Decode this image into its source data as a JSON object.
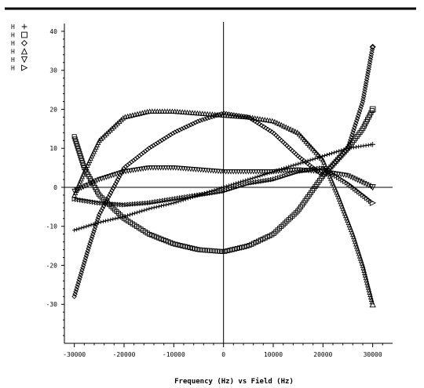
{
  "chart_data": {
    "type": "scatter",
    "xlabel": "Frequency (Hz) vs Field (Hz)",
    "ylabel": "",
    "xlim": [
      -32000,
      34000
    ],
    "ylim": [
      -40,
      42
    ],
    "x_ticks": [
      {
        "value": -30000,
        "label": "-30000"
      },
      {
        "value": -20000,
        "label": "-20000"
      },
      {
        "value": -10000,
        "label": "-10000"
      },
      {
        "value": 0,
        "label": "0"
      },
      {
        "value": 10000,
        "label": "10000"
      },
      {
        "value": 20000,
        "label": "20000"
      },
      {
        "value": 30000,
        "label": "30000"
      }
    ],
    "y_ticks": [
      {
        "value": 40,
        "label": "40"
      },
      {
        "value": 30,
        "label": "30"
      },
      {
        "value": 20,
        "label": "20"
      },
      {
        "value": 10,
        "label": "10"
      },
      {
        "value": 0,
        "label": "0"
      },
      {
        "value": -10,
        "label": "-10"
      },
      {
        "value": -20,
        "label": "-20"
      },
      {
        "value": -30,
        "label": "-30"
      }
    ],
    "grid": false,
    "legend_position": "top-left",
    "legend": [
      {
        "label": "H",
        "marker": "plus"
      },
      {
        "label": "H",
        "marker": "square"
      },
      {
        "label": "H",
        "marker": "diamond"
      },
      {
        "label": "H",
        "marker": "triangle-up"
      },
      {
        "label": "H",
        "marker": "triangle-down"
      },
      {
        "label": "H",
        "marker": "triangle-right"
      }
    ],
    "series": [
      {
        "marker": "plus",
        "x": [
          -30000,
          -25000,
          -20000,
          -15000,
          -10000,
          -5000,
          0,
          5000,
          10000,
          15000,
          20000,
          25000,
          30000
        ],
        "y": [
          -11,
          -9,
          -7.5,
          -5.5,
          -4,
          -2,
          0,
          2,
          4,
          6,
          8,
          10,
          11
        ]
      },
      {
        "marker": "square",
        "x": [
          -30000,
          -28000,
          -25000,
          -20000,
          -15000,
          -10000,
          -5000,
          0,
          5000,
          10000,
          15000,
          20000,
          25000,
          28000,
          30000
        ],
        "y": [
          13,
          5,
          -2,
          -8,
          -12,
          -14.5,
          -16,
          -16.5,
          -15,
          -12,
          -6,
          3,
          10,
          15,
          20
        ]
      },
      {
        "marker": "diamond",
        "x": [
          -30000,
          -27000,
          -25000,
          -20000,
          -15000,
          -10000,
          -5000,
          0,
          5000,
          10000,
          15000,
          20000,
          25000,
          28000,
          30000
        ],
        "y": [
          -28,
          -15,
          -7,
          5,
          10,
          14,
          17,
          19,
          18,
          14,
          8,
          3,
          10,
          22,
          36
        ]
      },
      {
        "marker": "triangle-up",
        "x": [
          -30000,
          -28000,
          -25000,
          -20000,
          -15000,
          -10000,
          -5000,
          0,
          5000,
          10000,
          15000,
          20000,
          23000,
          26000,
          28000,
          30000
        ],
        "y": [
          -2,
          4,
          12,
          18,
          19.5,
          19.5,
          19,
          18.5,
          18,
          17,
          14,
          7,
          -2,
          -12,
          -20,
          -30
        ]
      },
      {
        "marker": "triangle-down",
        "x": [
          -30000,
          -25000,
          -20000,
          -15000,
          -10000,
          -5000,
          0,
          5000,
          10000,
          15000,
          20000,
          25000,
          30000
        ],
        "y": [
          -1,
          2,
          4,
          5,
          5,
          4.5,
          4,
          4,
          4,
          4.5,
          4,
          3,
          0
        ]
      },
      {
        "marker": "triangle-right",
        "x": [
          -30000,
          -25000,
          -20000,
          -15000,
          -10000,
          -5000,
          0,
          5000,
          10000,
          15000,
          20000,
          25000,
          30000
        ],
        "y": [
          -3,
          -4,
          -4.5,
          -4,
          -3,
          -2,
          -1,
          1,
          2,
          4,
          5,
          1,
          -4
        ]
      }
    ]
  }
}
